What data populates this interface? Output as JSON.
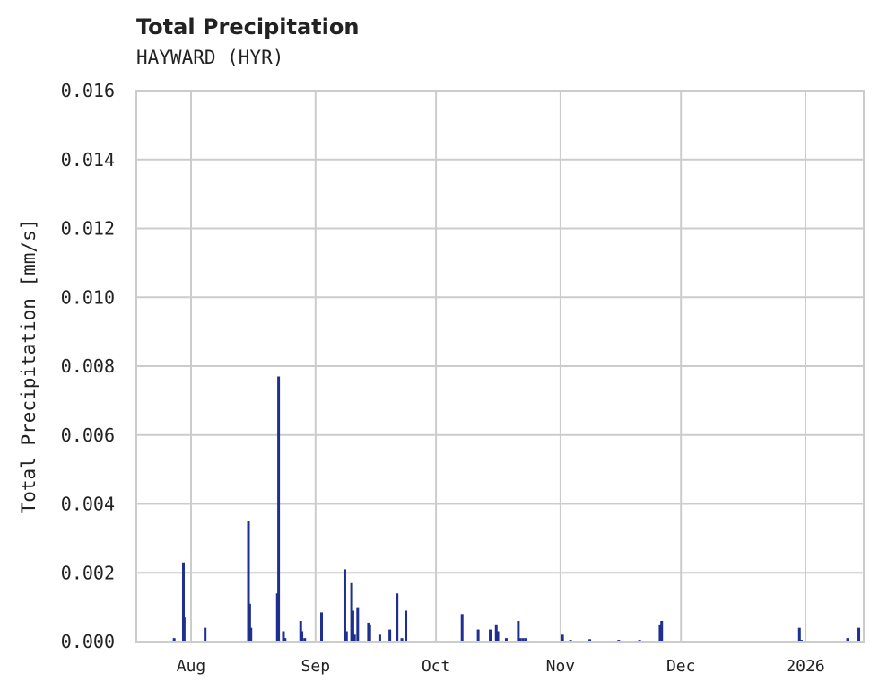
{
  "chart_data": {
    "type": "bar",
    "title": "Total Precipitation",
    "subtitle": "HAYWARD (HYR)",
    "xlabel": "",
    "ylabel": "Total Precipitation [mm/s]",
    "ylim": [
      0,
      0.016
    ],
    "yticks": [
      "0.000",
      "0.002",
      "0.004",
      "0.006",
      "0.008",
      "0.010",
      "0.012",
      "0.014",
      "0.016"
    ],
    "xticks": [
      "Aug",
      "Sep",
      "Oct",
      "Nov",
      "Dec",
      "2026"
    ],
    "grid": true,
    "legend": null,
    "bar_color": "#1f2f8f",
    "x_unit": "day offset from Jul 22 (Aug 1 = day 10)",
    "bars": [
      {
        "day": 5.8,
        "value": 0.0001
      },
      {
        "day": 8.1,
        "value": 0.0023
      },
      {
        "day": 8.3,
        "value": 0.0007
      },
      {
        "day": 13.5,
        "value": 0.0004
      },
      {
        "day": 24.3,
        "value": 0.0035
      },
      {
        "day": 24.6,
        "value": 0.0011
      },
      {
        "day": 24.9,
        "value": 0.0004
      },
      {
        "day": 31.5,
        "value": 0.0014
      },
      {
        "day": 31.8,
        "value": 0.0077
      },
      {
        "day": 33.0,
        "value": 0.0003
      },
      {
        "day": 33.4,
        "value": 0.0001
      },
      {
        "day": 37.3,
        "value": 0.0006
      },
      {
        "day": 37.6,
        "value": 0.0003
      },
      {
        "day": 38.3,
        "value": 0.0001
      },
      {
        "day": 42.5,
        "value": 0.00085
      },
      {
        "day": 48.3,
        "value": 0.0021
      },
      {
        "day": 48.7,
        "value": 0.0003
      },
      {
        "day": 50.0,
        "value": 0.0017
      },
      {
        "day": 50.3,
        "value": 0.0009
      },
      {
        "day": 50.7,
        "value": 0.0002
      },
      {
        "day": 51.5,
        "value": 0.001
      },
      {
        "day": 54.2,
        "value": 0.00055
      },
      {
        "day": 54.5,
        "value": 0.0005
      },
      {
        "day": 57.0,
        "value": 0.0002
      },
      {
        "day": 59.5,
        "value": 0.00035
      },
      {
        "day": 61.3,
        "value": 0.0014
      },
      {
        "day": 62.5,
        "value": 0.0001
      },
      {
        "day": 63.5,
        "value": 0.0009
      },
      {
        "day": 77.5,
        "value": 0.0008
      },
      {
        "day": 81.5,
        "value": 0.00035
      },
      {
        "day": 84.5,
        "value": 0.00035
      },
      {
        "day": 86.0,
        "value": 0.0005
      },
      {
        "day": 86.4,
        "value": 0.0003
      },
      {
        "day": 88.5,
        "value": 0.0001
      },
      {
        "day": 91.5,
        "value": 0.0006
      },
      {
        "day": 91.9,
        "value": 0.0001
      },
      {
        "day": 92.6,
        "value": 0.0001
      },
      {
        "day": 93.3,
        "value": 0.0001
      },
      {
        "day": 102.5,
        "value": 0.0002
      },
      {
        "day": 104.5,
        "value": 5e-05
      },
      {
        "day": 109.3,
        "value": 7e-05
      },
      {
        "day": 116.5,
        "value": 5e-05
      },
      {
        "day": 121.7,
        "value": 5e-05
      },
      {
        "day": 126.8,
        "value": 0.0005
      },
      {
        "day": 127.2,
        "value": 0.0006
      },
      {
        "day": 161.5,
        "value": 0.0004
      },
      {
        "day": 162.0,
        "value": 5e-05
      },
      {
        "day": 173.5,
        "value": 0.0001
      },
      {
        "day": 176.3,
        "value": 0.0004
      }
    ]
  }
}
